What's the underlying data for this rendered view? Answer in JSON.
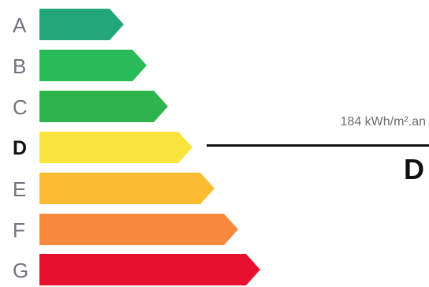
{
  "classes": [
    {
      "letter": "A",
      "color": "#23a77a",
      "active": false
    },
    {
      "letter": "B",
      "color": "#29bb59",
      "active": false
    },
    {
      "letter": "C",
      "color": "#2db44c",
      "active": false
    },
    {
      "letter": "D",
      "color": "#f8e43c",
      "active": true
    },
    {
      "letter": "E",
      "color": "#fbbb32",
      "active": false
    },
    {
      "letter": "F",
      "color": "#f98a3d",
      "active": false
    },
    {
      "letter": "G",
      "color": "#e8102f",
      "active": false
    }
  ],
  "marker": {
    "value": "184 kWh/m².an",
    "class_label": "D"
  }
}
